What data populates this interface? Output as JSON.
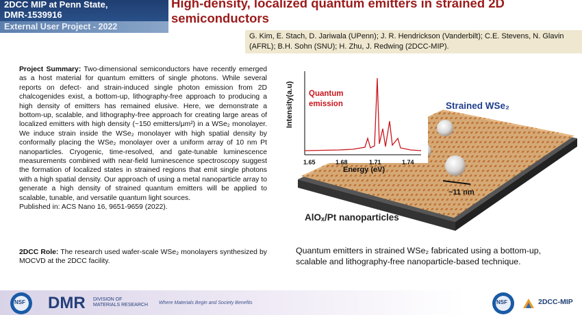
{
  "header": {
    "program": "2DCC MIP at Penn State,",
    "award": "DMR-1539916",
    "project": "External User Project - 2022",
    "title": "High-density, localized quantum emitters in strained 2D semiconductors",
    "authors": "G. Kim, E. Stach, D. Jariwala (UPenn); J. R. Hendrickson (Vanderbilt); C.E. Stevens, N. Glavin (AFRL); B.H. Sohn (SNU);  H. Zhu, J. Redwing (2DCC-MIP)."
  },
  "summary": {
    "label": "Project Summary:",
    "text": "Two-dimensional  semiconductors have recently emerged as a host material for quantum emitters of single photons. While several reports on defect- and strain-induced single photon emission from 2D chalcogenides exist, a bottom-up, lithography-free approach to producing a high density of emitters has remained elusive. Here, we demonstrate a bottom-up, scalable, and lithography-free  approach for creating large areas of localized emitters with high density (~150 emitters/μm²) in a WSe₂ monolayer. We induce strain inside the WSe₂ monolayer with high spatial density by conformally placing the WSe₂ monolayer over  a uniform array of 10 nm Pt nanoparticles. Cryogenic, time-resolved,  and gate-tunable luminescence measurements combined with near-field luminescence spectroscopy suggest the formation of localized states in strained regions that emit single photons with a high spatial density. Our approach of using a metal nanoparticle array to generate  a high density of strained quantum emitters will be applied to scalable, tunable, and versatile quantum light sources.",
    "published": "Published in: ACS Nano 16, 9651-9659  (2022)."
  },
  "role": {
    "label": "2DCC Role:",
    "text": "The research used wafer-scale WSe₂ monolayers synthesized by MOCVD at the 2DCC facility."
  },
  "figure": {
    "inset": {
      "y_label": "Intensity(a.u)",
      "x_label": "Energy (eV)",
      "x_ticks": [
        "1.65",
        "1.68",
        "1.71",
        "1.74"
      ],
      "annotation": "Quantum emission"
    },
    "material_label": "Strained WSe₂",
    "scale_label": "~11 nm",
    "substrate_label": "AlOₓ/Pt nanoparticles"
  },
  "caption": "Quantum  emitters in strained WSe₂ fabricated using a bottom-up, scalable and lithography-free  nanoparticle-based technique.",
  "footer": {
    "nsf": "NSF",
    "dmr": "DMR",
    "division": "DIVISION OF MATERIALS RESEARCH",
    "tagline": "Where Materials Begin and Society Benefits",
    "nsf_right": "NSF",
    "brand": "2DCC-MIP"
  }
}
